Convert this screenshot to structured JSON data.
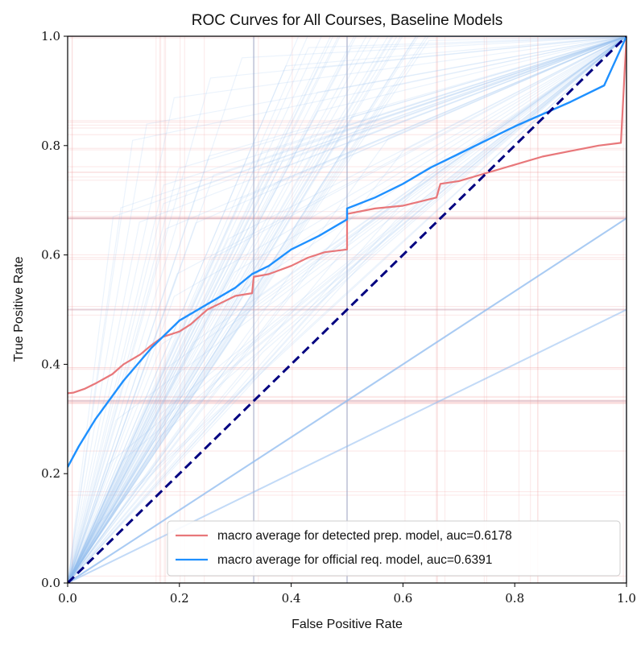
{
  "chart_data": {
    "type": "line",
    "title": "ROC Curves for All Courses, Baseline Models",
    "xlabel": "False Positive Rate",
    "ylabel": "True Positive Rate",
    "xlim": [
      0,
      1
    ],
    "ylim": [
      0,
      1
    ],
    "x_ticks": [
      0.0,
      0.2,
      0.4,
      0.6,
      0.8,
      1.0
    ],
    "x_tick_labels": [
      "0.0",
      "0.2",
      "0.4",
      "0.6",
      "0.8",
      "1.0"
    ],
    "y_ticks": [
      0.0,
      0.2,
      0.4,
      0.6,
      0.8,
      1.0
    ],
    "y_tick_labels": [
      "0.0",
      "0.2",
      "0.4",
      "0.6",
      "0.8",
      "1.0"
    ],
    "grid": false,
    "legend_position": "lower-right",
    "colors": {
      "detected": "#e8777a",
      "official": "#1e90ff",
      "diagonal": "#000080",
      "detected_faint": "#f0a0a0",
      "official_faint": "#8fbcf0"
    },
    "series": [
      {
        "name": "macro average for detected prep. model, auc=0.6178",
        "style": "solid",
        "x": [
          0.0,
          0.01,
          0.03,
          0.05,
          0.08,
          0.1,
          0.13,
          0.15,
          0.17,
          0.2,
          0.22,
          0.25,
          0.28,
          0.3,
          0.33,
          0.333,
          0.36,
          0.4,
          0.43,
          0.46,
          0.5,
          0.5,
          0.55,
          0.6,
          0.64,
          0.66,
          0.667,
          0.7,
          0.75,
          0.8,
          0.85,
          0.9,
          0.95,
          0.99,
          1.0
        ],
        "y": [
          0.347,
          0.348,
          0.355,
          0.365,
          0.382,
          0.4,
          0.418,
          0.435,
          0.45,
          0.46,
          0.473,
          0.5,
          0.515,
          0.525,
          0.53,
          0.56,
          0.565,
          0.58,
          0.595,
          0.605,
          0.61,
          0.675,
          0.685,
          0.69,
          0.7,
          0.705,
          0.73,
          0.735,
          0.75,
          0.765,
          0.78,
          0.79,
          0.8,
          0.805,
          1.0
        ]
      },
      {
        "name": "macro average for official req. model, auc=0.6391",
        "style": "solid",
        "x": [
          0.0,
          0.02,
          0.05,
          0.1,
          0.15,
          0.2,
          0.25,
          0.3,
          0.33,
          0.36,
          0.4,
          0.45,
          0.5,
          0.5,
          0.55,
          0.6,
          0.65,
          0.7,
          0.8,
          0.9,
          0.96,
          1.0
        ],
        "y": [
          0.212,
          0.25,
          0.3,
          0.37,
          0.43,
          0.48,
          0.51,
          0.54,
          0.565,
          0.58,
          0.61,
          0.635,
          0.665,
          0.685,
          0.705,
          0.73,
          0.76,
          0.785,
          0.835,
          0.88,
          0.91,
          1.0
        ]
      },
      {
        "name": "",
        "style": "dashed",
        "x": [
          0,
          1
        ],
        "y": [
          0,
          1
        ]
      }
    ],
    "legend_entries": [
      "macro average for detected prep. model, auc=0.6178",
      "macro average for official req. model, auc=0.6391"
    ]
  }
}
